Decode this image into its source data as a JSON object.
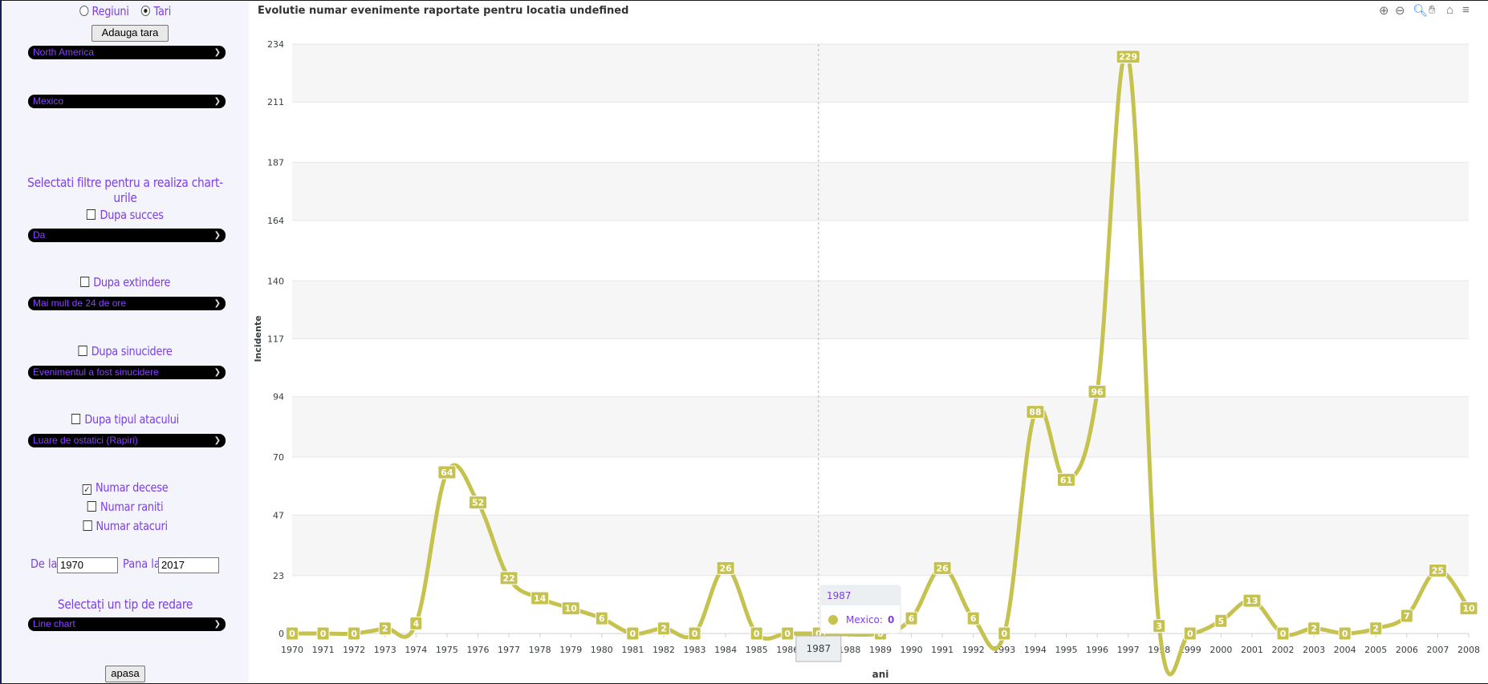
{
  "sidebar": {
    "mode_regions": "Regiuni",
    "mode_countries": "Tari",
    "add_country": "Adauga tara",
    "region_select": "North America",
    "country_select": "Mexico",
    "filters_heading": "Selectati filtre pentru a realiza chart-urile",
    "filter_success_label": "Dupa succes",
    "filter_success_value": "Da",
    "filter_extended_label": "Dupa extindere",
    "filter_extended_value": "Mai mult de 24 de ore",
    "filter_suicide_label": "Dupa sinucidere",
    "filter_suicide_value": "Evenimentul a fost sinucidere",
    "filter_attack_label": "Dupa tipul atacului",
    "filter_attack_value": "Luare de ostatici (Rapiri)",
    "metric_deaths": "Numar decese",
    "metric_wounded": "Numar raniti",
    "metric_attacks": "Numar atacuri",
    "from_label": "De la",
    "from_value": "1970",
    "to_label": "Pana la",
    "to_value": "2017",
    "render_type_label": "Selectați un tip de redare",
    "render_type_value": "Line chart",
    "submit": "apasa"
  },
  "toolbar_icons": [
    "zoom-in-icon",
    "zoom-out-icon",
    "zoom-select-icon",
    "pan-hand-icon",
    "home-icon",
    "menu-icon"
  ],
  "tooltip": {
    "title": "1987",
    "series": "Mexico:",
    "value": "0",
    "x_label": "1987"
  },
  "colors": {
    "series": "#c5c24f",
    "accent": "#7b3fe4"
  },
  "chart_data": {
    "type": "line",
    "title": "Evolutie numar evenimente raportate pentru locatia undefined",
    "xlabel": "ani",
    "ylabel": "Incidente",
    "ylim": [
      0,
      234
    ],
    "yticks": [
      "0",
      "23",
      "47",
      "70",
      "94",
      "117",
      "140",
      "164",
      "187",
      "211",
      "234"
    ],
    "grid": "horizontal bands",
    "categories": [
      "1970",
      "1971",
      "1972",
      "1973",
      "1974",
      "1975",
      "1976",
      "1977",
      "1978",
      "1979",
      "1980",
      "1981",
      "1982",
      "1983",
      "1984",
      "1985",
      "1986",
      "1987",
      "1988",
      "1989",
      "1990",
      "1991",
      "1992",
      "1993",
      "1994",
      "1995",
      "1996",
      "1997",
      "1998",
      "1999",
      "2000",
      "2001",
      "2002",
      "2003",
      "2004",
      "2005",
      "2006",
      "2007",
      "2008"
    ],
    "series": [
      {
        "name": "Mexico",
        "values": [
          0,
          0,
          0,
          2,
          4,
          64,
          52,
          22,
          14,
          10,
          6,
          0,
          2,
          0,
          26,
          0,
          0,
          0,
          null,
          0,
          6,
          26,
          6,
          0,
          88,
          61,
          96,
          229,
          3,
          0,
          5,
          13,
          0,
          2,
          0,
          2,
          7,
          25,
          10
        ]
      }
    ]
  }
}
